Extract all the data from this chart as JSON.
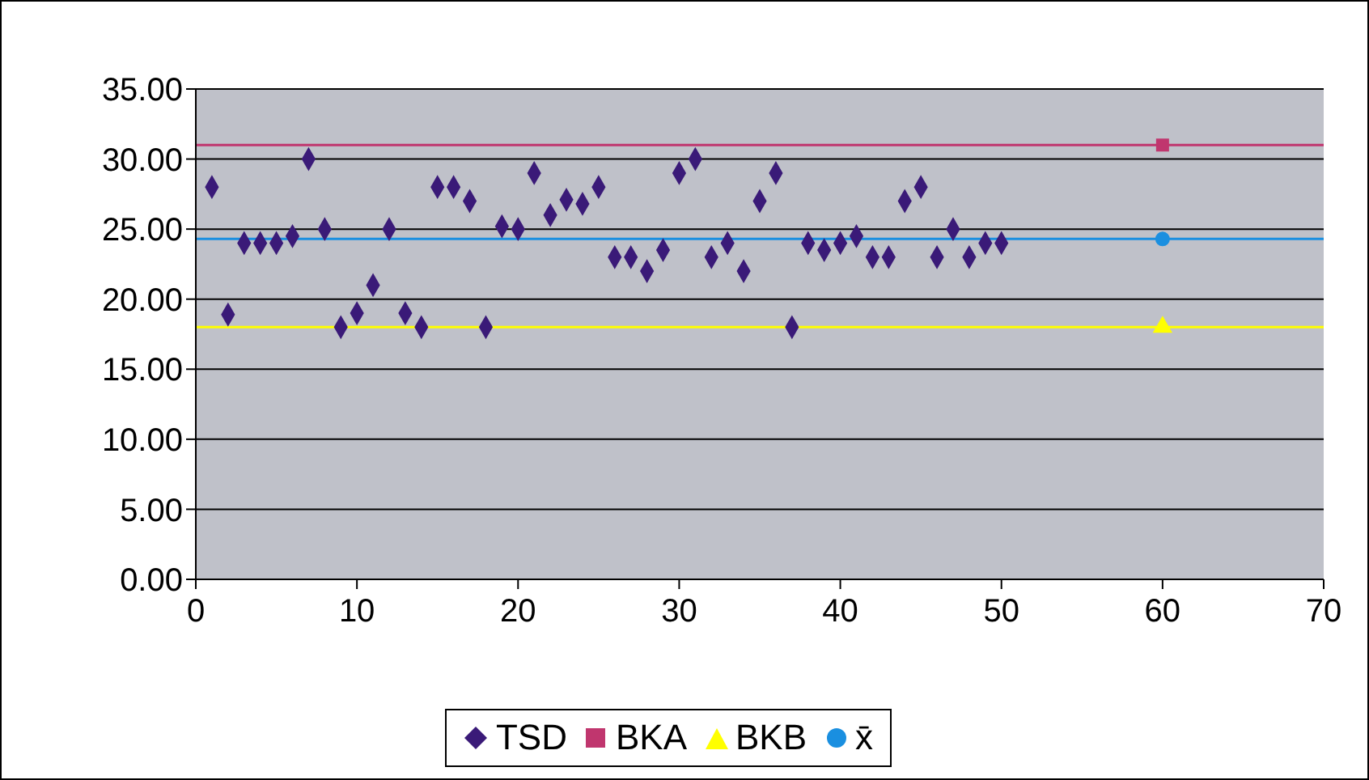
{
  "chart_data": {
    "type": "scatter",
    "xlim": [
      0,
      70
    ],
    "xticks": [
      0,
      10,
      20,
      30,
      40,
      50,
      60,
      70
    ],
    "ylim": [
      0,
      35
    ],
    "yticks": [
      {
        "value": 0,
        "label": "0.00"
      },
      {
        "value": 5,
        "label": "5.00"
      },
      {
        "value": 10,
        "label": "10.00"
      },
      {
        "value": 15,
        "label": "15.00"
      },
      {
        "value": 20,
        "label": "20.00"
      },
      {
        "value": 25,
        "label": "25.00"
      },
      {
        "value": 30,
        "label": "30.00"
      },
      {
        "value": 35,
        "label": "35.00"
      }
    ],
    "grid": "y",
    "legend": "bottom",
    "series": [
      {
        "name": "TSD",
        "color": "#3a1a78",
        "marker": "diamond",
        "x": [
          1,
          2,
          3,
          4,
          5,
          6,
          7,
          8,
          9,
          10,
          11,
          12,
          13,
          14,
          15,
          16,
          17,
          18,
          19,
          20,
          21,
          22,
          23,
          24,
          25,
          26,
          27,
          28,
          29,
          30,
          31,
          32,
          33,
          34,
          35,
          36,
          37,
          38,
          39,
          40,
          41,
          42,
          43,
          44,
          45,
          46,
          47,
          48,
          49,
          50
        ],
        "values": [
          28,
          18.9,
          24,
          24,
          24,
          24.5,
          30,
          25,
          18,
          19,
          21,
          25,
          19,
          18,
          28,
          28,
          27,
          18,
          25.2,
          25,
          29,
          26,
          27.1,
          26.8,
          28,
          23,
          23,
          22,
          23.5,
          29,
          30,
          23,
          24,
          22,
          27,
          29,
          18,
          24,
          23.5,
          24,
          24.5,
          23,
          23,
          27,
          28,
          23,
          25,
          23,
          24,
          24
        ]
      },
      {
        "name": "BKA",
        "color": "#c0366e",
        "marker": "square",
        "x": [
          60
        ],
        "values": [
          31
        ]
      },
      {
        "name": "BKB",
        "color": "#ffff00",
        "marker": "triangle",
        "x": [
          60
        ],
        "values": [
          18
        ]
      },
      {
        "name": "x̄",
        "color": "#1a8fe0",
        "marker": "circle",
        "x": [
          60
        ],
        "values": [
          24.3
        ]
      }
    ],
    "ref_lines": [
      {
        "axis": "y",
        "value": 31,
        "color": "#c0366e"
      },
      {
        "axis": "y",
        "value": 18,
        "color": "#ffff00"
      },
      {
        "axis": "y",
        "value": 24.3,
        "color": "#1a8fe0"
      }
    ]
  }
}
